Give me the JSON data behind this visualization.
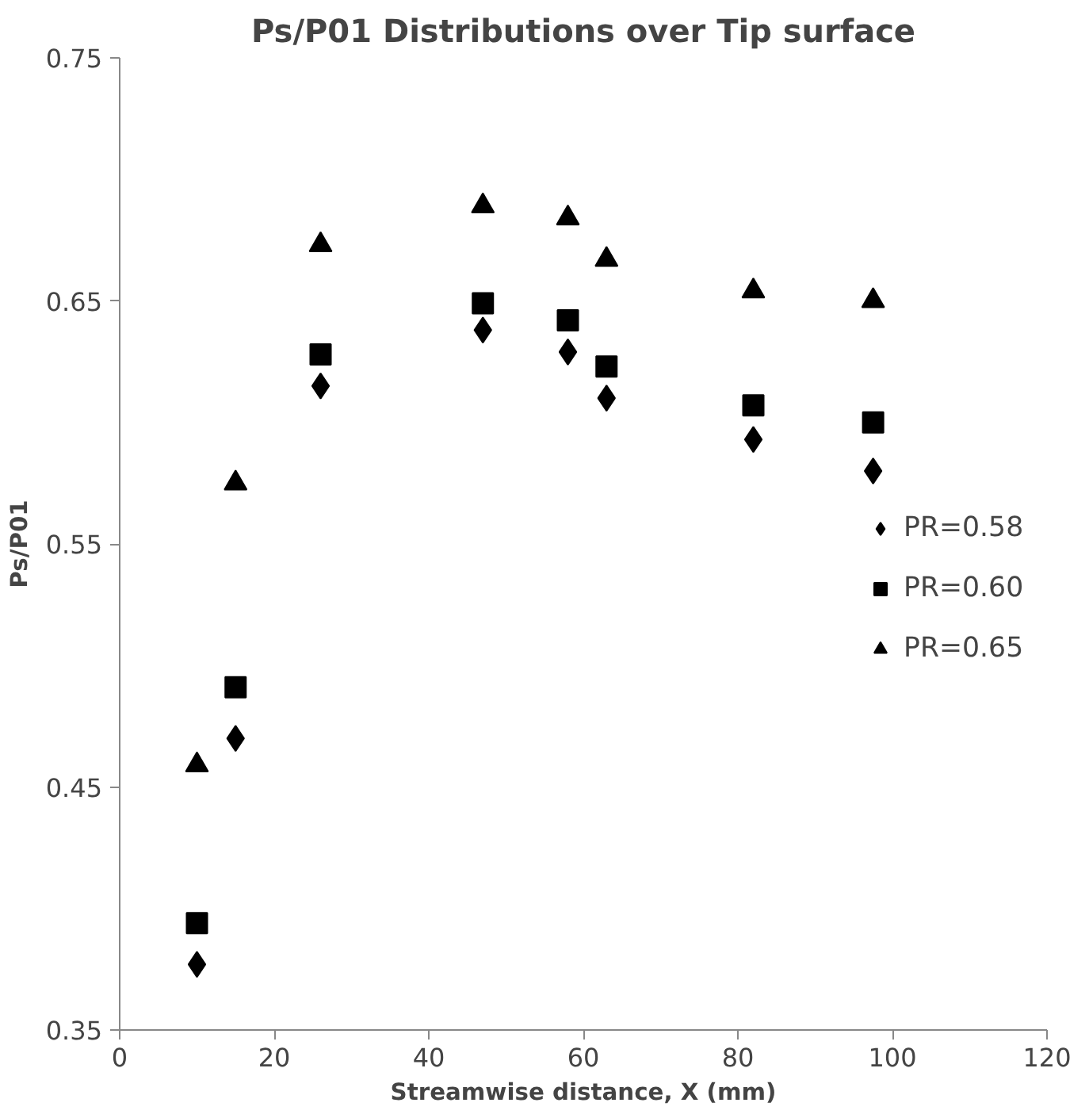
{
  "chart_data": {
    "type": "scatter",
    "title": "Ps/P01 Distributions over Tip surface",
    "xlabel": "Streamwise distance, X (mm)",
    "ylabel": "Ps/P01",
    "x": [
      10,
      15,
      26,
      47,
      58,
      63,
      82,
      97.5
    ],
    "series": [
      {
        "name": "PR=0.58",
        "color": "#000000",
        "marker": "diamond",
        "values": [
          0.377,
          0.47,
          0.615,
          0.638,
          0.629,
          0.61,
          0.593,
          0.58
        ]
      },
      {
        "name": "PR=0.60",
        "color": "#000000",
        "marker": "square",
        "values": [
          0.394,
          0.491,
          0.628,
          0.649,
          0.642,
          0.623,
          0.607,
          0.6
        ]
      },
      {
        "name": "PR=0.65",
        "color": "#000000",
        "marker": "triangle",
        "values": [
          0.459,
          0.575,
          0.673,
          0.689,
          0.684,
          0.667,
          0.654,
          0.65
        ]
      }
    ],
    "xlim": [
      0,
      120
    ],
    "xticks": [
      0,
      20,
      40,
      60,
      80,
      100,
      120
    ],
    "ylim": [
      0.35,
      0.75
    ],
    "yticks": [
      0.35,
      0.45,
      0.55,
      0.65,
      0.75
    ],
    "grid": false,
    "legend": "right"
  }
}
